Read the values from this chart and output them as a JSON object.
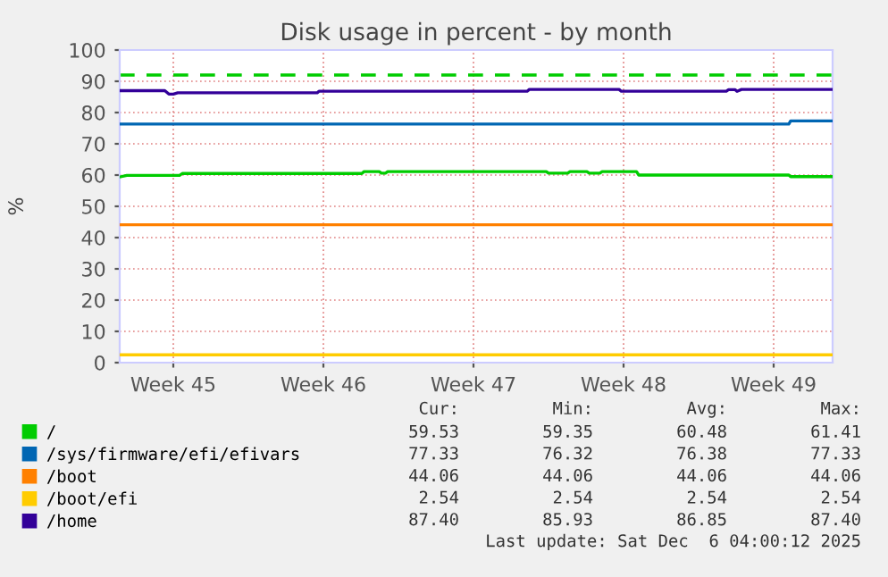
{
  "chart_data": {
    "type": "line",
    "title": "Disk usage in percent - by month",
    "ylabel": "%",
    "xlim": [
      "2025-11-02T22:00",
      "2025-12-06T04:00"
    ],
    "xticks": [
      {
        "value": "2025-11-05T10:00",
        "label": "Week 45"
      },
      {
        "value": "2025-11-12T10:00",
        "label": "Week 46"
      },
      {
        "value": "2025-11-19T10:00",
        "label": "Week 47"
      },
      {
        "value": "2025-11-26T10:00",
        "label": "Week 48"
      },
      {
        "value": "2025-12-03T10:00",
        "label": "Week 49"
      }
    ],
    "ylim": [
      0,
      100
    ],
    "yticks": [
      0,
      10,
      20,
      30,
      40,
      50,
      60,
      70,
      80,
      90,
      100
    ],
    "grid": true,
    "legend": "bottom",
    "marker": "none",
    "line_style": "solid",
    "series": [
      {
        "name": "/",
        "color": "#00cc00",
        "x": [
          "2025-11-02T22:00",
          "2025-11-03T06:00",
          "2025-11-05T17:00",
          "2025-11-05T20:00",
          "2025-11-14T05:00",
          "2025-11-14T07:30",
          "2025-11-15T00:30",
          "2025-11-15T03:00",
          "2025-11-15T07:30",
          "2025-11-15T10:00",
          "2025-11-22T19:30",
          "2025-11-22T22:00",
          "2025-11-23T19:30",
          "2025-11-23T22:00",
          "2025-11-24T17:00",
          "2025-11-24T19:30",
          "2025-11-25T07:30",
          "2025-11-25T10:00",
          "2025-11-27T00:30",
          "2025-11-27T03:00",
          "2025-12-04T03:00",
          "2025-12-04T05:00",
          "2025-12-06T04:00"
        ],
        "values": [
          59.4,
          59.9,
          59.9,
          60.5,
          60.5,
          61.1,
          61.1,
          60.6,
          60.6,
          61.1,
          61.1,
          60.6,
          60.6,
          61.1,
          61.1,
          60.6,
          60.6,
          61.1,
          61.1,
          60.0,
          60.0,
          59.5,
          59.5
        ]
      },
      {
        "name": "/sys/firmware/efi/efivars",
        "color": "#0066b3",
        "x": [
          "2025-11-02T22:00",
          "2025-12-04T03:00",
          "2025-12-04T05:00",
          "2025-12-06T04:00"
        ],
        "values": [
          76.3,
          76.3,
          77.3,
          77.3
        ]
      },
      {
        "name": "/boot",
        "color": "#ff8000",
        "x": [
          "2025-11-02T22:00",
          "2025-12-06T04:00"
        ],
        "values": [
          44.1,
          44.1
        ]
      },
      {
        "name": "/boot/efi",
        "color": "#ffcc00",
        "x": [
          "2025-11-02T22:00",
          "2025-12-06T04:00"
        ],
        "values": [
          2.5,
          2.5
        ]
      },
      {
        "name": "/home",
        "color": "#330099",
        "x": [
          "2025-11-02T22:00",
          "2025-11-05T00:30",
          "2025-11-05T05:00",
          "2025-11-05T10:00",
          "2025-11-05T15:00",
          "2025-11-12T03:00",
          "2025-11-12T05:00",
          "2025-11-21T22:00",
          "2025-11-22T00:30",
          "2025-11-26T05:00",
          "2025-11-26T07:30",
          "2025-12-01T05:00",
          "2025-12-01T07:30",
          "2025-12-01T15:00",
          "2025-12-01T17:00",
          "2025-12-01T22:00",
          "2025-12-06T04:00"
        ],
        "values": [
          87.0,
          87.0,
          85.9,
          85.9,
          86.3,
          86.3,
          86.8,
          86.8,
          87.4,
          87.4,
          86.8,
          86.8,
          87.3,
          87.3,
          86.8,
          87.4,
          87.4
        ]
      }
    ],
    "ref_lines": [
      {
        "axis": "y",
        "value": 92,
        "label": null,
        "color": "#00cc00",
        "line_style": "dashed"
      }
    ],
    "annotations": [
      "Cur:",
      "Min:",
      "Avg:",
      "Max:",
      "59.53",
      "59.35",
      "60.48",
      "61.41",
      "77.33",
      "76.32",
      "76.38",
      "77.33",
      "44.06",
      "44.06",
      "44.06",
      "44.06",
      "2.54",
      "2.54",
      "2.54",
      "2.54",
      "87.40",
      "85.93",
      "86.85",
      "87.40",
      "Last update: Sat Dec  6 04:00:12 2025"
    ]
  }
}
